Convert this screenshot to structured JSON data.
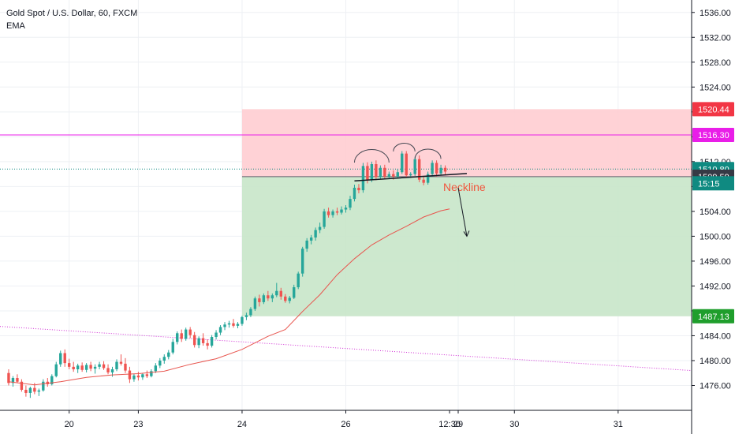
{
  "header": {
    "symbol_line": "Gold Spot / U.S. Dollar, 60, FXCM",
    "indicator": "EMA"
  },
  "chart_data": {
    "type": "candlestick",
    "instrument": "Gold Spot / U.S. Dollar",
    "interval": "60",
    "source": "FXCM",
    "ylim": [
      1472,
      1538
    ],
    "y_ticks": [
      1476,
      1480,
      1484,
      1488,
      1492,
      1496,
      1500,
      1504,
      1508,
      1512,
      1516,
      1520,
      1524,
      1528,
      1532,
      1536
    ],
    "y_tick_labels": [
      "1476.00",
      "1480.00",
      "1484.00",
      "",
      "1492.00",
      "1496.00",
      "1500.00",
      "1504.00",
      "",
      "1512.00",
      "",
      "",
      "1524.00",
      "1528.00",
      "1532.00",
      "1536.00"
    ],
    "x_ticks": [
      {
        "label": "20",
        "t": 14
      },
      {
        "label": "23",
        "t": 30
      },
      {
        "label": "24",
        "t": 54
      },
      {
        "label": "26",
        "t": 78
      },
      {
        "label": "12:30",
        "t": 102
      },
      {
        "label": "29",
        "t": 104
      },
      {
        "label": "30",
        "t": 117
      },
      {
        "label": "31",
        "t": 141
      }
    ],
    "x_range": [
      -2,
      158
    ],
    "candles": [
      [
        0,
        1478.0,
        1478.6,
        1476.0,
        1476.4
      ],
      [
        1,
        1476.4,
        1477.5,
        1475.8,
        1477.2
      ],
      [
        2,
        1477.2,
        1477.8,
        1476.4,
        1476.6
      ],
      [
        3,
        1476.6,
        1477.0,
        1475.0,
        1475.3
      ],
      [
        4,
        1475.3,
        1476.0,
        1474.2,
        1474.8
      ],
      [
        5,
        1474.8,
        1475.8,
        1474.0,
        1475.6
      ],
      [
        6,
        1475.6,
        1476.4,
        1474.6,
        1475.0
      ],
      [
        7,
        1475.0,
        1475.5,
        1474.3,
        1475.2
      ],
      [
        8,
        1475.2,
        1477.0,
        1475.0,
        1476.6
      ],
      [
        9,
        1476.6,
        1477.2,
        1475.8,
        1476.2
      ],
      [
        10,
        1476.2,
        1477.8,
        1476.0,
        1477.5
      ],
      [
        11,
        1477.5,
        1479.8,
        1477.3,
        1479.4
      ],
      [
        12,
        1479.4,
        1481.6,
        1479.0,
        1481.2
      ],
      [
        13,
        1481.2,
        1481.8,
        1479.0,
        1479.6
      ],
      [
        14,
        1479.6,
        1480.3,
        1478.6,
        1479.0
      ],
      [
        15,
        1479.0,
        1479.8,
        1478.2,
        1478.6
      ],
      [
        16,
        1478.6,
        1479.5,
        1478.0,
        1479.2
      ],
      [
        17,
        1479.2,
        1479.7,
        1478.2,
        1478.5
      ],
      [
        18,
        1478.5,
        1479.6,
        1478.1,
        1479.3
      ],
      [
        19,
        1479.3,
        1479.8,
        1478.3,
        1478.7
      ],
      [
        20,
        1478.7,
        1479.4,
        1477.9,
        1479.0
      ],
      [
        21,
        1479.0,
        1479.8,
        1478.6,
        1479.4
      ],
      [
        22,
        1479.4,
        1479.9,
        1478.5,
        1478.8
      ],
      [
        23,
        1478.8,
        1479.4,
        1477.8,
        1478.1
      ],
      [
        24,
        1478.1,
        1479.0,
        1477.4,
        1478.6
      ],
      [
        25,
        1478.6,
        1480.2,
        1478.3,
        1479.8
      ],
      [
        26,
        1479.8,
        1481.0,
        1479.2,
        1479.5
      ],
      [
        27,
        1479.5,
        1480.4,
        1478.0,
        1478.4
      ],
      [
        28,
        1478.4,
        1479.0,
        1476.4,
        1477.0
      ],
      [
        29,
        1477.0,
        1477.9,
        1476.6,
        1477.6
      ],
      [
        30,
        1477.6,
        1478.2,
        1476.8,
        1477.3
      ],
      [
        31,
        1477.3,
        1478.0,
        1476.9,
        1477.8
      ],
      [
        32,
        1477.8,
        1478.4,
        1477.2,
        1477.5
      ],
      [
        33,
        1477.5,
        1478.6,
        1477.3,
        1478.3
      ],
      [
        34,
        1478.3,
        1479.6,
        1478.0,
        1479.2
      ],
      [
        35,
        1479.2,
        1480.4,
        1478.8,
        1480.0
      ],
      [
        36,
        1480.0,
        1481.0,
        1479.5,
        1480.6
      ],
      [
        37,
        1480.6,
        1481.7,
        1480.2,
        1481.3
      ],
      [
        38,
        1481.3,
        1483.5,
        1481.0,
        1483.0
      ],
      [
        39,
        1483.0,
        1484.7,
        1482.6,
        1484.4
      ],
      [
        40,
        1484.4,
        1485.0,
        1483.0,
        1483.5
      ],
      [
        41,
        1483.5,
        1485.3,
        1483.2,
        1485.0
      ],
      [
        42,
        1485.0,
        1485.4,
        1483.6,
        1484.1
      ],
      [
        43,
        1484.1,
        1484.6,
        1482.1,
        1482.5
      ],
      [
        44,
        1482.5,
        1483.9,
        1482.0,
        1483.6
      ],
      [
        45,
        1483.6,
        1484.4,
        1482.4,
        1482.8
      ],
      [
        46,
        1482.8,
        1483.4,
        1481.8,
        1482.4
      ],
      [
        47,
        1482.4,
        1484.1,
        1482.1,
        1483.8
      ],
      [
        48,
        1483.8,
        1484.9,
        1483.4,
        1484.5
      ],
      [
        49,
        1484.5,
        1485.7,
        1484.1,
        1485.4
      ],
      [
        50,
        1485.4,
        1486.2,
        1484.9,
        1485.8
      ],
      [
        51,
        1485.8,
        1486.4,
        1485.3,
        1486.0
      ],
      [
        52,
        1486.0,
        1486.7,
        1485.3,
        1485.6
      ],
      [
        53,
        1485.6,
        1486.2,
        1485.2,
        1485.9
      ],
      [
        54,
        1485.9,
        1487.2,
        1485.6,
        1487.0
      ],
      [
        55,
        1487.0,
        1487.7,
        1486.5,
        1487.3
      ],
      [
        56,
        1487.3,
        1488.6,
        1487.0,
        1488.3
      ],
      [
        57,
        1488.3,
        1490.3,
        1488.0,
        1490.0
      ],
      [
        58,
        1490.0,
        1490.6,
        1488.7,
        1489.4
      ],
      [
        59,
        1489.4,
        1490.8,
        1489.1,
        1490.5
      ],
      [
        60,
        1490.5,
        1491.2,
        1489.6,
        1490.0
      ],
      [
        61,
        1490.0,
        1490.8,
        1489.4,
        1490.5
      ],
      [
        62,
        1490.5,
        1492.5,
        1490.2,
        1491.2
      ],
      [
        63,
        1491.2,
        1491.7,
        1489.8,
        1490.3
      ],
      [
        64,
        1490.3,
        1490.7,
        1489.3,
        1489.6
      ],
      [
        65,
        1489.6,
        1490.4,
        1489.2,
        1490.1
      ],
      [
        66,
        1490.1,
        1492.2,
        1489.9,
        1491.8
      ],
      [
        67,
        1491.8,
        1494.3,
        1491.5,
        1494.0
      ],
      [
        68,
        1494.0,
        1498.3,
        1493.5,
        1498.0
      ],
      [
        69,
        1498.0,
        1499.7,
        1497.5,
        1499.3
      ],
      [
        70,
        1499.3,
        1500.2,
        1498.7,
        1499.8
      ],
      [
        71,
        1499.8,
        1501.4,
        1499.3,
        1501.0
      ],
      [
        72,
        1501.0,
        1502.2,
        1500.5,
        1501.5
      ],
      [
        73,
        1501.5,
        1504.4,
        1501.2,
        1504.0
      ],
      [
        74,
        1504.0,
        1504.6,
        1503.0,
        1503.4
      ],
      [
        75,
        1503.4,
        1504.3,
        1503.0,
        1504.0
      ],
      [
        76,
        1504.0,
        1504.6,
        1503.4,
        1503.8
      ],
      [
        77,
        1503.8,
        1504.8,
        1503.5,
        1504.3
      ],
      [
        78,
        1504.3,
        1505.0,
        1503.8,
        1504.6
      ],
      [
        79,
        1504.6,
        1506.5,
        1504.2,
        1506.0
      ],
      [
        80,
        1506.0,
        1508.3,
        1505.6,
        1507.8
      ],
      [
        81,
        1507.8,
        1508.4,
        1506.9,
        1507.4
      ],
      [
        82,
        1507.4,
        1511.8,
        1507.0,
        1511.3
      ],
      [
        83,
        1511.3,
        1511.9,
        1508.5,
        1509.0
      ],
      [
        84,
        1509.0,
        1512.0,
        1508.7,
        1511.6
      ],
      [
        85,
        1511.6,
        1512.2,
        1509.0,
        1509.5
      ],
      [
        86,
        1509.5,
        1511.4,
        1509.2,
        1511.0
      ],
      [
        87,
        1511.0,
        1511.5,
        1509.2,
        1509.6
      ],
      [
        88,
        1509.6,
        1510.4,
        1509.2,
        1510.0
      ],
      [
        89,
        1510.0,
        1510.6,
        1509.1,
        1509.6
      ],
      [
        90,
        1509.6,
        1510.8,
        1509.3,
        1510.3
      ],
      [
        91,
        1510.3,
        1513.7,
        1510.0,
        1513.3
      ],
      [
        92,
        1513.3,
        1513.7,
        1509.4,
        1509.8
      ],
      [
        93,
        1509.8,
        1510.3,
        1509.4,
        1510.0
      ],
      [
        94,
        1510.0,
        1512.8,
        1509.7,
        1512.4
      ],
      [
        95,
        1512.4,
        1513.0,
        1508.7,
        1509.1
      ],
      [
        96,
        1509.1,
        1509.6,
        1508.2,
        1508.6
      ],
      [
        97,
        1508.6,
        1510.4,
        1508.3,
        1510.0
      ],
      [
        98,
        1510.0,
        1512.2,
        1509.6,
        1511.8
      ],
      [
        99,
        1511.8,
        1512.2,
        1509.6,
        1510.1
      ],
      [
        100,
        1510.1,
        1511.5,
        1509.8,
        1511.0
      ],
      [
        101,
        1511.0,
        1511.4,
        1509.8,
        1510.4
      ]
    ],
    "ema": [
      [
        0,
        1476.6
      ],
      [
        6,
        1476.1
      ],
      [
        12,
        1476.6
      ],
      [
        18,
        1477.3
      ],
      [
        24,
        1477.7
      ],
      [
        30,
        1477.9
      ],
      [
        36,
        1478.3
      ],
      [
        42,
        1479.4
      ],
      [
        48,
        1480.3
      ],
      [
        54,
        1481.8
      ],
      [
        60,
        1483.9
      ],
      [
        64,
        1485.0
      ],
      [
        68,
        1487.9
      ],
      [
        72,
        1490.6
      ],
      [
        76,
        1493.8
      ],
      [
        80,
        1496.4
      ],
      [
        84,
        1498.6
      ],
      [
        88,
        1500.2
      ],
      [
        92,
        1501.6
      ],
      [
        96,
        1503.1
      ],
      [
        100,
        1504.1
      ],
      [
        102,
        1504.4
      ]
    ],
    "horizontal_lines": [
      {
        "price": 1516.3,
        "color": "#e91ee8",
        "style": "solid"
      },
      {
        "price": 1510.8,
        "color": "#0f8a81",
        "style": "dotted"
      }
    ],
    "trend_line": {
      "from": [
        -2,
        1485.5
      ],
      "to": [
        158,
        1478.4
      ],
      "color": "#d02bd4",
      "style": "dotted"
    },
    "position_tool": {
      "t_start": 54,
      "t_end": 158,
      "entry": 1509.59,
      "stop": 1520.44,
      "target": 1487.13,
      "risk_color": "#ffcdd2",
      "reward_color": "#c8e6c9"
    },
    "pattern": {
      "name": "head and shoulders",
      "neckline": {
        "from": [
          80,
          1508.9
        ],
        "to": [
          106,
          1510.1
        ]
      },
      "neckline_label": "Neckline",
      "arrow": {
        "from": [
          104,
          1507.8
        ],
        "to": [
          106,
          1500.0
        ]
      },
      "arcs": [
        {
          "t_from": 80,
          "t_to": 88,
          "price": 1511.6
        },
        {
          "t_from": 89,
          "t_to": 94,
          "price": 1513.4
        },
        {
          "t_from": 94,
          "t_to": 100,
          "price": 1512.2
        }
      ]
    },
    "price_labels": [
      {
        "price": 1520.44,
        "text": "1520.44",
        "bg": "#f23645",
        "fg": "#ffffff"
      },
      {
        "price": 1516.3,
        "text": "1516.30",
        "bg": "#e91ee8",
        "fg": "#ffffff"
      },
      {
        "price": 1510.8,
        "text": "1510.80",
        "bg": "#0f8a81",
        "fg": "#ffffff"
      },
      {
        "price": 1509.59,
        "text": "1509.59",
        "bg": "#363a45",
        "fg": "#ffffff"
      },
      {
        "price": 1487.13,
        "text": "1487.13",
        "bg": "#1f9e2c",
        "fg": "#ffffff"
      }
    ],
    "countdown": "15:15",
    "colors": {
      "up": "#26a69a",
      "down": "#ef5350",
      "ema": "#e8554e",
      "grid": "#eef0f4",
      "axis_text": "#131722"
    }
  }
}
